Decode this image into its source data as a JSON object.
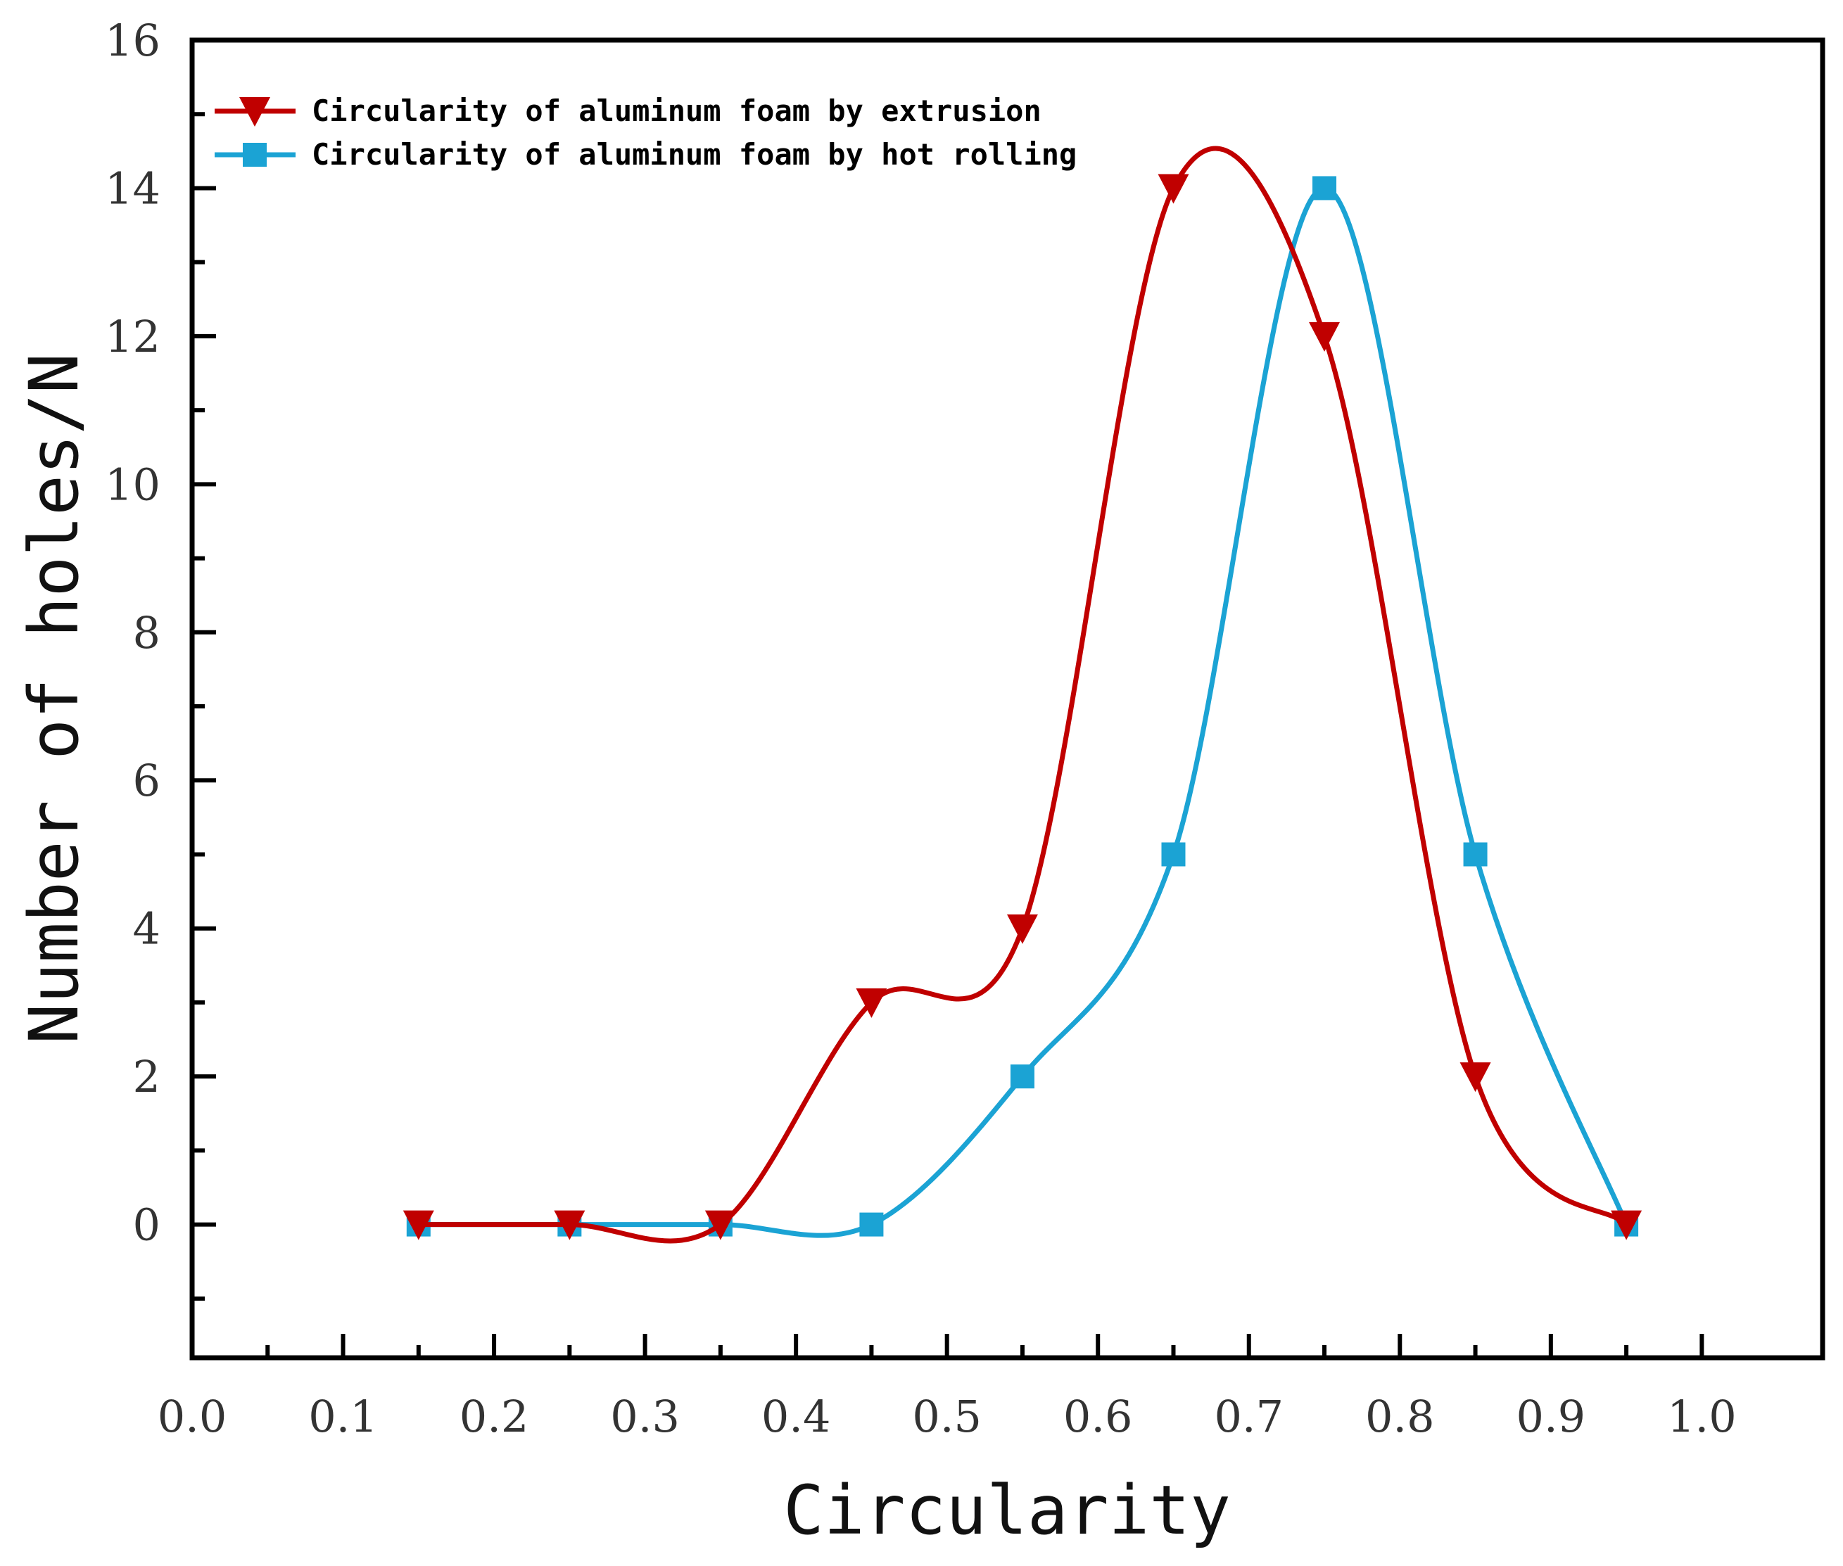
{
  "chart_data": {
    "type": "line",
    "title": "",
    "xlabel": "Circularity",
    "ylabel": "Number of holes/N",
    "xlim": [
      0.0,
      1.08
    ],
    "ylim": [
      -1.8,
      16
    ],
    "x_ticks": [
      0.0,
      0.1,
      0.2,
      0.3,
      0.4,
      0.5,
      0.6,
      0.7,
      0.8,
      0.9,
      1.0
    ],
    "x_tick_labels": [
      "0.0",
      "0.1",
      "0.2",
      "0.3",
      "0.4",
      "0.5",
      "0.6",
      "0.7",
      "0.8",
      "0.9",
      "1.0"
    ],
    "y_ticks": [
      0,
      2,
      4,
      6,
      8,
      10,
      12,
      14,
      16
    ],
    "y_tick_labels": [
      "0",
      "2",
      "4",
      "6",
      "8",
      "10",
      "12",
      "14",
      "16"
    ],
    "grid": false,
    "legend_position": "top-left",
    "smoothing": "spline",
    "x": [
      0.15,
      0.25,
      0.35,
      0.45,
      0.55,
      0.65,
      0.75,
      0.85,
      0.95
    ],
    "series": [
      {
        "name": "Circularity of aluminum foam by extrusion",
        "color": "#c00000",
        "marker": "triangle-down",
        "values": [
          0,
          0,
          0,
          3,
          4,
          14,
          12,
          2,
          0
        ]
      },
      {
        "name": "Circularity of aluminum foam by hot rolling",
        "color": "#1ba3d4",
        "marker": "square",
        "values": [
          0,
          0,
          0,
          0,
          2,
          5,
          14,
          5,
          0
        ]
      }
    ]
  }
}
